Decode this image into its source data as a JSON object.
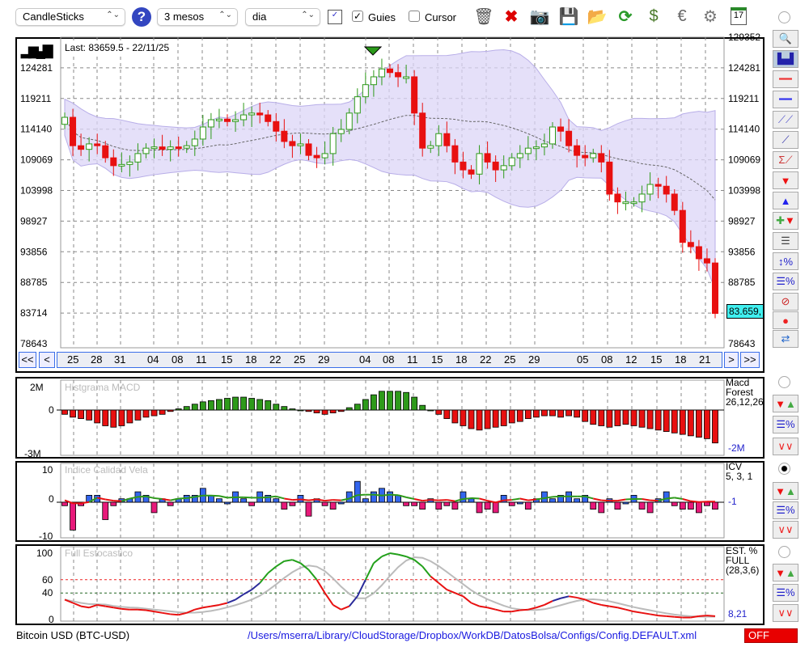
{
  "toolbar": {
    "chart_type": "CandleSticks",
    "period": "3 mesos",
    "interval": "dia",
    "guides_label": "Guies",
    "guides_checked": true,
    "cursor_label": "Cursor",
    "cursor_checked": false,
    "icons": [
      "help-icon",
      "chart-window-icon",
      "trash-icon",
      "delete-icon",
      "camera-icon",
      "save-icon",
      "folder-icon",
      "refresh-icon",
      "sync-icon",
      "euro-icon",
      "settings-icon",
      "calendar-icon"
    ],
    "calendar_day": "17"
  },
  "main": {
    "last_label": "Last: 83659.5 - 22/11/25",
    "price_ticks": [
      "129352",
      "124281",
      "119211",
      "114140",
      "109069",
      "103998",
      "98927",
      "93856",
      "88785",
      "83714",
      "78643"
    ],
    "current_price": "83.659,",
    "nav": {
      "first": "<<",
      "prev": "<",
      "next": ">",
      "last": ">>",
      "dates": [
        "25",
        "28",
        "31",
        "04",
        "08",
        "11",
        "15",
        "18",
        "22",
        "25",
        "29",
        "04",
        "08",
        "11",
        "15",
        "18",
        "22",
        "25",
        "29",
        "05",
        "08",
        "12",
        "15",
        "18",
        "21"
      ]
    }
  },
  "chart_data": {
    "type": "candlestick",
    "title": "Bitcoin USD (BTC-USD)",
    "ylim": [
      78643,
      129352
    ],
    "closes": [
      116100,
      111400,
      110800,
      111700,
      111400,
      109400,
      108100,
      108300,
      108700,
      110100,
      111000,
      111200,
      110800,
      111200,
      111000,
      111400,
      112500,
      114500,
      115700,
      115800,
      115400,
      115700,
      116500,
      116800,
      116500,
      115400,
      113800,
      112100,
      111400,
      111700,
      109800,
      109400,
      110100,
      113400,
      114100,
      116800,
      119500,
      121500,
      122800,
      124100,
      123500,
      122800,
      122800,
      116800,
      111000,
      111400,
      113400,
      111400,
      108700,
      107400,
      106700,
      110100,
      108700,
      107400,
      108100,
      109400,
      110100,
      111000,
      111200,
      111700,
      114500,
      113800,
      111400,
      109800,
      109400,
      110100,
      108700,
      103400,
      102100,
      102100,
      102100,
      103400,
      105000,
      104700,
      103400,
      100700,
      95400,
      94700,
      92700,
      92000,
      83659
    ],
    "last": 83659.5
  },
  "macd": {
    "title": "Histgrama MACD",
    "ticks": [
      "2M",
      "0",
      "-3M"
    ],
    "label": [
      "Macd",
      "Forest",
      "26,12,26"
    ],
    "value": "-2M",
    "values": [
      -0.3,
      -0.5,
      -0.6,
      -0.7,
      -0.9,
      -1.1,
      -1.2,
      -1.1,
      -0.9,
      -0.7,
      -0.5,
      -0.4,
      -0.3,
      -0.1,
      0.1,
      0.3,
      0.5,
      0.7,
      0.8,
      0.9,
      1.0,
      1.1,
      1.1,
      1.0,
      0.9,
      0.8,
      0.5,
      0.3,
      0.1,
      0,
      -0.1,
      -0.2,
      -0.3,
      -0.2,
      -0.1,
      0.2,
      0.5,
      0.9,
      1.3,
      1.6,
      1.6,
      1.6,
      1.5,
      1.1,
      0.4,
      0,
      -0.3,
      -0.6,
      -0.9,
      -1.1,
      -1.3,
      -1.4,
      -1.3,
      -1.2,
      -1.1,
      -0.9,
      -0.8,
      -0.6,
      -0.5,
      -0.4,
      -0.4,
      -0.5,
      -0.4,
      -0.5,
      -0.8,
      -1.0,
      -1.1,
      -1.2,
      -1.1,
      -1.0,
      -1.1,
      -1.2,
      -1.3,
      -1.4,
      -1.5,
      -1.6,
      -1.7,
      -1.8,
      -1.9,
      -2.0,
      -2.3
    ]
  },
  "icv": {
    "title": "Indice Calidad Vela",
    "ticks": [
      "10",
      "0",
      "-10"
    ],
    "label": [
      "ICV",
      "5, 3, 1"
    ],
    "value": "-1",
    "values": [
      -1,
      -8,
      -1,
      2,
      2,
      -5,
      -1,
      1,
      1,
      3,
      2,
      -3,
      1,
      -1,
      1,
      2,
      2,
      4,
      2,
      1,
      0,
      3,
      1,
      -1,
      3,
      2,
      1,
      -2,
      -1,
      2,
      -4,
      1,
      -1,
      -2,
      0,
      3,
      6,
      1,
      3,
      4,
      3,
      2,
      -1,
      -1,
      -2,
      1,
      -2,
      -1,
      -2,
      3,
      1,
      -3,
      -2,
      -3,
      2,
      -1,
      0,
      -2,
      1,
      3,
      1,
      2,
      3,
      1,
      2,
      -2,
      -3,
      1,
      -2,
      0,
      2,
      -2,
      -3,
      1,
      3,
      -1,
      -2,
      -2,
      -3,
      -1,
      -2
    ]
  },
  "stoch": {
    "title": "Full Estocastico",
    "ticks": [
      "100",
      "60",
      "40",
      "0"
    ],
    "label": [
      "EST. %",
      "FULL",
      "(28,3,6)"
    ],
    "value": "8,21",
    "k": [
      30,
      25,
      20,
      18,
      22,
      20,
      18,
      16,
      15,
      15,
      14,
      12,
      10,
      8,
      7,
      10,
      15,
      18,
      20,
      22,
      25,
      30,
      38,
      45,
      55,
      70,
      80,
      88,
      90,
      85,
      75,
      60,
      40,
      22,
      15,
      20,
      35,
      60,
      85,
      95,
      100,
      98,
      95,
      90,
      80,
      65,
      55,
      45,
      40,
      35,
      25,
      20,
      18,
      15,
      12,
      12,
      14,
      15,
      18,
      22,
      28,
      32,
      35,
      33,
      30,
      25,
      22,
      20,
      18,
      15,
      12,
      10,
      8,
      6,
      5,
      4,
      3,
      3,
      5,
      6,
      5
    ]
  },
  "footer": {
    "symbol": "Bitcoin USD (BTC-USD)",
    "path": "/Users/mserra/Library/CloudStorage/Dropbox/WorkDB/DatosBolsa/Configs/Config.DEFAULT.xml",
    "status": "OFF"
  },
  "colors": {
    "up": "#2e9a1a",
    "down": "#e81010",
    "band": "#dcd6f7",
    "icv_up": "#3366ee",
    "icv_down": "#e8197a",
    "accent": "#3a6ee8"
  }
}
